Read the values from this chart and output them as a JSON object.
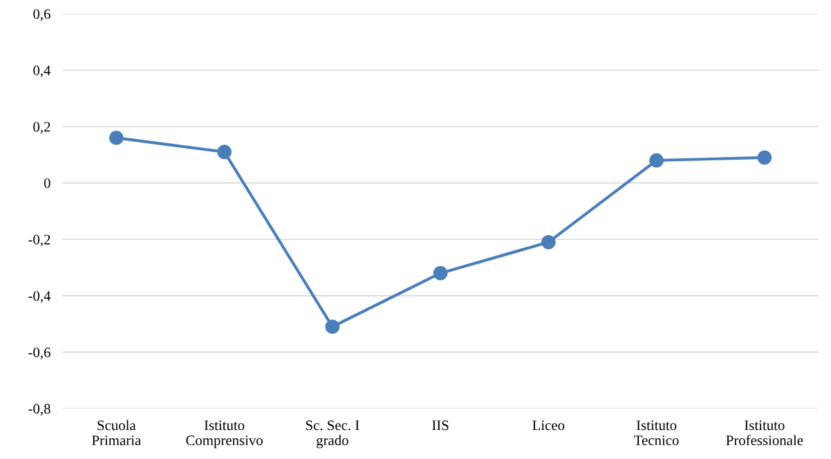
{
  "chart_data": {
    "type": "line",
    "categories": [
      "Scuola\nPrimaria",
      "Istituto\nComprensivo",
      "Sc. Sec. I\ngrado",
      "IIS",
      "Liceo",
      "Istituto\nTecnico",
      "Istituto\nProfessionale"
    ],
    "series": [
      {
        "color": "#4a7ebb",
        "values": [
          0.16,
          0.11,
          -0.51,
          -0.32,
          -0.21,
          0.08,
          0.09
        ]
      }
    ],
    "ylim": [
      -0.8,
      0.6
    ],
    "yticks": [
      {
        "value": -0.8,
        "label": "-0,8"
      },
      {
        "value": -0.6,
        "label": "-0,6"
      },
      {
        "value": -0.4,
        "label": "-0,4"
      },
      {
        "value": -0.2,
        "label": "-0,2"
      },
      {
        "value": 0,
        "label": "0"
      },
      {
        "value": 0.2,
        "label": "0,2"
      },
      {
        "value": 0.4,
        "label": "0,4"
      },
      {
        "value": 0.6,
        "label": "0,6"
      }
    ],
    "grid": "y",
    "marker": "circle",
    "line_style": "solid",
    "legend": false
  }
}
